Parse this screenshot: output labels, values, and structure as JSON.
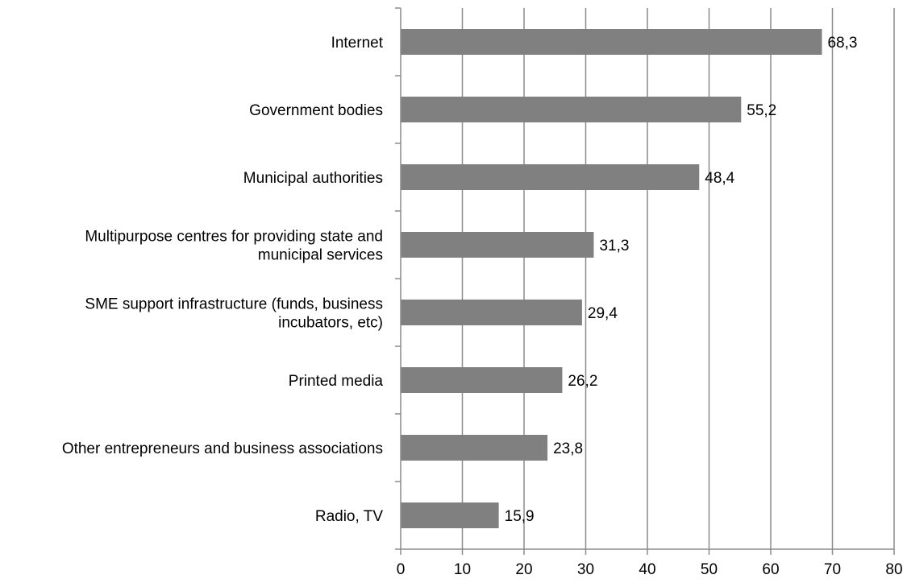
{
  "chart_data": {
    "type": "bar",
    "orientation": "horizontal",
    "categories": [
      "Internet",
      "Government bodies",
      "Municipal authorities",
      "Multipurpose centres for providing state and municipal services",
      "SME support infrastructure (funds, business incubators, etc)",
      "Printed media",
      "Other entrepreneurs and business associations",
      "Radio, TV"
    ],
    "category_label_lines": [
      [
        "Internet"
      ],
      [
        "Government bodies"
      ],
      [
        "Municipal authorities"
      ],
      [
        "Multipurpose centres for providing state and",
        "municipal services"
      ],
      [
        "SME support infrastructure (funds, business",
        "incubators, etc)"
      ],
      [
        "Printed media"
      ],
      [
        "Other entrepreneurs and business associations"
      ],
      [
        "Radio, TV"
      ]
    ],
    "values": [
      68.3,
      55.2,
      48.4,
      31.3,
      29.4,
      26.2,
      23.8,
      15.9
    ],
    "data_labels": [
      "68,3",
      "55,2",
      "48,4",
      "31,3",
      "29,4",
      "26,2",
      "23,8",
      "15,9"
    ],
    "title": "",
    "xlabel": "",
    "ylabel": "",
    "xlim": [
      0,
      80
    ],
    "x_ticks": [
      0,
      10,
      20,
      30,
      40,
      50,
      60,
      70,
      80
    ],
    "x_tick_labels": [
      "0",
      "10",
      "20",
      "30",
      "40",
      "50",
      "60",
      "70",
      "80"
    ],
    "grid": true,
    "legend": "none",
    "bar_color": "#808080",
    "grid_color": "#8c8c8c",
    "axis_color": "#8c8c8c"
  }
}
